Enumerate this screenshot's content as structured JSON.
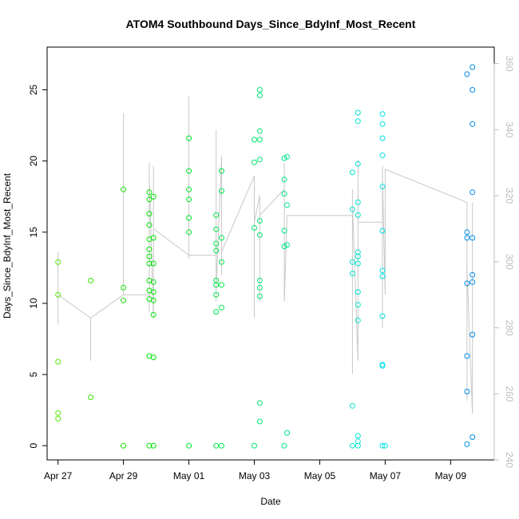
{
  "chart_data": {
    "type": "scatter",
    "title": "ATOM4 Southbound Days_Since_BdyInf_Most_Recent",
    "xlabel": "Date",
    "ylabel": "Days_Since_BdyInf_Most_Recent",
    "x_tick_labels": [
      "Apr 27",
      "Apr 29",
      "May 01",
      "May 03",
      "May 05",
      "May 07",
      "May 09"
    ],
    "x_tick_dates": [
      "2000-04-27",
      "2000-04-29",
      "2000-05-01",
      "2000-05-03",
      "2000-05-05",
      "2000-05-07",
      "2000-05-09"
    ],
    "xlim": [
      "2000-04-26T16:00",
      "2000-05-10T08:00"
    ],
    "ylim": [
      -1,
      28
    ],
    "y_ticks": [
      0,
      5,
      10,
      15,
      20,
      25
    ],
    "y2_ticks": [
      240,
      260,
      280,
      300,
      320,
      340,
      360
    ],
    "y2lim": [
      240,
      365
    ],
    "grid": false,
    "points": [
      [
        "2000-04-27T00:00",
        12.9
      ],
      [
        "2000-04-27T00:00",
        10.6
      ],
      [
        "2000-04-27T00:00",
        5.9
      ],
      [
        "2000-04-27T00:00",
        2.3
      ],
      [
        "2000-04-27T00:00",
        1.9
      ],
      [
        "2000-04-28T00:00",
        11.6
      ],
      [
        "2000-04-28T00:00",
        3.4
      ],
      [
        "2000-04-29T00:00",
        18.0
      ],
      [
        "2000-04-29T00:00",
        11.1
      ],
      [
        "2000-04-29T00:00",
        10.2
      ],
      [
        "2000-04-29T00:00",
        0.0
      ],
      [
        "2000-04-29T19:00",
        17.8
      ],
      [
        "2000-04-29T19:00",
        17.3
      ],
      [
        "2000-04-29T19:00",
        16.3
      ],
      [
        "2000-04-29T19:00",
        15.5
      ],
      [
        "2000-04-29T19:00",
        14.5
      ],
      [
        "2000-04-29T19:00",
        13.8
      ],
      [
        "2000-04-29T19:00",
        13.3
      ],
      [
        "2000-04-29T19:00",
        12.8
      ],
      [
        "2000-04-29T19:00",
        11.6
      ],
      [
        "2000-04-29T19:00",
        10.9
      ],
      [
        "2000-04-29T19:00",
        10.3
      ],
      [
        "2000-04-29T19:00",
        6.3
      ],
      [
        "2000-04-29T19:00",
        0.0
      ],
      [
        "2000-04-29T22:00",
        17.5
      ],
      [
        "2000-04-29T22:00",
        14.6
      ],
      [
        "2000-04-29T22:00",
        12.8
      ],
      [
        "2000-04-29T22:00",
        11.5
      ],
      [
        "2000-04-29T22:00",
        10.8
      ],
      [
        "2000-04-29T22:00",
        10.2
      ],
      [
        "2000-04-29T22:00",
        9.2
      ],
      [
        "2000-04-29T22:00",
        6.2
      ],
      [
        "2000-04-29T22:00",
        0.0
      ],
      [
        "2000-05-01T00:00",
        21.6
      ],
      [
        "2000-05-01T00:00",
        19.3
      ],
      [
        "2000-05-01T00:00",
        18.0
      ],
      [
        "2000-05-01T00:00",
        17.3
      ],
      [
        "2000-05-01T00:00",
        16.0
      ],
      [
        "2000-05-01T00:00",
        15.0
      ],
      [
        "2000-05-01T00:00",
        0.0
      ],
      [
        "2000-05-01T20:00",
        16.2
      ],
      [
        "2000-05-01T20:00",
        15.2
      ],
      [
        "2000-05-01T20:00",
        14.2
      ],
      [
        "2000-05-01T20:00",
        13.7
      ],
      [
        "2000-05-01T20:00",
        11.6
      ],
      [
        "2000-05-01T20:00",
        11.3
      ],
      [
        "2000-05-01T20:00",
        10.6
      ],
      [
        "2000-05-01T20:00",
        9.4
      ],
      [
        "2000-05-01T20:00",
        0.0
      ],
      [
        "2000-05-02T00:00",
        19.3
      ],
      [
        "2000-05-02T00:00",
        17.9
      ],
      [
        "2000-05-02T00:00",
        14.6
      ],
      [
        "2000-05-02T00:00",
        12.9
      ],
      [
        "2000-05-02T00:00",
        11.3
      ],
      [
        "2000-05-02T00:00",
        9.7
      ],
      [
        "2000-05-02T00:00",
        0.0
      ],
      [
        "2000-05-03T00:00",
        21.5
      ],
      [
        "2000-05-03T00:00",
        19.9
      ],
      [
        "2000-05-03T00:00",
        15.3
      ],
      [
        "2000-05-03T00:00",
        0.0
      ],
      [
        "2000-05-03T04:00",
        25.0
      ],
      [
        "2000-05-03T04:00",
        24.6
      ],
      [
        "2000-05-03T04:00",
        22.1
      ],
      [
        "2000-05-03T04:00",
        21.5
      ],
      [
        "2000-05-03T04:00",
        20.1
      ],
      [
        "2000-05-03T04:00",
        15.8
      ],
      [
        "2000-05-03T04:00",
        14.8
      ],
      [
        "2000-05-03T04:00",
        11.6
      ],
      [
        "2000-05-03T04:00",
        11.1
      ],
      [
        "2000-05-03T04:00",
        10.5
      ],
      [
        "2000-05-03T04:00",
        3.0
      ],
      [
        "2000-05-03T04:00",
        1.7
      ],
      [
        "2000-05-03T22:00",
        20.2
      ],
      [
        "2000-05-03T22:00",
        18.7
      ],
      [
        "2000-05-03T22:00",
        17.7
      ],
      [
        "2000-05-03T22:00",
        15.1
      ],
      [
        "2000-05-03T22:00",
        14.0
      ],
      [
        "2000-05-03T22:00",
        0.0
      ],
      [
        "2000-05-04T00:00",
        20.3
      ],
      [
        "2000-05-04T00:00",
        16.9
      ],
      [
        "2000-05-04T00:00",
        14.1
      ],
      [
        "2000-05-04T00:00",
        0.9
      ],
      [
        "2000-05-06T00:00",
        19.2
      ],
      [
        "2000-05-06T00:00",
        16.6
      ],
      [
        "2000-05-06T00:00",
        12.9
      ],
      [
        "2000-05-06T00:00",
        12.1
      ],
      [
        "2000-05-06T00:00",
        2.8
      ],
      [
        "2000-05-06T00:00",
        0.0
      ],
      [
        "2000-05-06T04:00",
        23.4
      ],
      [
        "2000-05-06T04:00",
        22.8
      ],
      [
        "2000-05-06T04:00",
        19.8
      ],
      [
        "2000-05-06T04:00",
        17.1
      ],
      [
        "2000-05-06T04:00",
        16.2
      ],
      [
        "2000-05-06T04:00",
        13.6
      ],
      [
        "2000-05-06T04:00",
        13.3
      ],
      [
        "2000-05-06T04:00",
        12.8
      ],
      [
        "2000-05-06T04:00",
        10.8
      ],
      [
        "2000-05-06T04:00",
        9.9
      ],
      [
        "2000-05-06T04:00",
        8.8
      ],
      [
        "2000-05-06T04:00",
        0.7
      ],
      [
        "2000-05-06T04:00",
        0.3
      ],
      [
        "2000-05-06T04:00",
        0.0
      ],
      [
        "2000-05-06T22:00",
        23.3
      ],
      [
        "2000-05-06T22:00",
        22.6
      ],
      [
        "2000-05-06T22:00",
        21.6
      ],
      [
        "2000-05-06T22:00",
        20.4
      ],
      [
        "2000-05-06T22:00",
        18.2
      ],
      [
        "2000-05-06T22:00",
        15.1
      ],
      [
        "2000-05-06T22:00",
        12.3
      ],
      [
        "2000-05-06T22:00",
        11.9
      ],
      [
        "2000-05-06T22:00",
        9.1
      ],
      [
        "2000-05-06T22:00",
        5.7
      ],
      [
        "2000-05-06T22:00",
        5.6
      ],
      [
        "2000-05-06T22:00",
        0.0
      ],
      [
        "2000-05-07T00:00",
        0.0
      ],
      [
        "2000-05-09T12:00",
        26.1
      ],
      [
        "2000-05-09T12:00",
        15.0
      ],
      [
        "2000-05-09T12:00",
        14.6
      ],
      [
        "2000-05-09T12:00",
        11.4
      ],
      [
        "2000-05-09T12:00",
        6.3
      ],
      [
        "2000-05-09T12:00",
        3.8
      ],
      [
        "2000-05-09T12:00",
        0.1
      ],
      [
        "2000-05-09T16:00",
        26.6
      ],
      [
        "2000-05-09T16:00",
        25.0
      ],
      [
        "2000-05-09T16:00",
        22.6
      ],
      [
        "2000-05-09T16:00",
        17.8
      ],
      [
        "2000-05-09T16:00",
        14.6
      ],
      [
        "2000-05-09T16:00",
        12.0
      ],
      [
        "2000-05-09T16:00",
        11.5
      ],
      [
        "2000-05-09T16:00",
        7.8
      ],
      [
        "2000-05-09T16:00",
        0.6
      ]
    ],
    "line_y2": [
      [
        "2000-04-27T00:00",
        300
      ],
      [
        "2000-04-27T00:00",
        294
      ],
      [
        "2000-04-27T00:00",
        303
      ],
      [
        "2000-04-27T00:00",
        281
      ],
      [
        "2000-04-27T00:00",
        290
      ],
      [
        "2000-04-28T00:00",
        283
      ],
      [
        "2000-04-28T00:00",
        270
      ],
      [
        "2000-04-28T00:00",
        283
      ],
      [
        "2000-04-29T00:00",
        290
      ],
      [
        "2000-04-29T00:00",
        345
      ],
      [
        "2000-04-29T00:00",
        290
      ],
      [
        "2000-04-29T19:00",
        290
      ],
      [
        "2000-04-29T19:00",
        328
      ],
      [
        "2000-04-29T19:00",
        285
      ],
      [
        "2000-04-29T19:00",
        330
      ],
      [
        "2000-04-29T19:00",
        288
      ],
      [
        "2000-04-29T19:00",
        325
      ],
      [
        "2000-04-29T22:00",
        283
      ],
      [
        "2000-04-29T22:00",
        329
      ],
      [
        "2000-04-29T22:00",
        292
      ],
      [
        "2000-04-29T22:00",
        310
      ],
      [
        "2000-05-01T00:00",
        302
      ],
      [
        "2000-05-01T00:00",
        335
      ],
      [
        "2000-05-01T00:00",
        301
      ],
      [
        "2000-05-01T00:00",
        350
      ],
      [
        "2000-05-01T00:00",
        302
      ],
      [
        "2000-05-01T20:00",
        302
      ],
      [
        "2000-05-01T20:00",
        340
      ],
      [
        "2000-05-01T20:00",
        288
      ],
      [
        "2000-05-01T20:00",
        338
      ],
      [
        "2000-05-01T20:00",
        292
      ],
      [
        "2000-05-02T00:00",
        332
      ],
      [
        "2000-05-02T00:00",
        296
      ],
      [
        "2000-05-02T00:00",
        330
      ],
      [
        "2000-05-02T00:00",
        303
      ],
      [
        "2000-05-03T00:00",
        326
      ],
      [
        "2000-05-03T00:00",
        283
      ],
      [
        "2000-05-03T00:00",
        322
      ],
      [
        "2000-05-03T00:00",
        285
      ],
      [
        "2000-05-03T00:00",
        312
      ],
      [
        "2000-05-03T04:00",
        320
      ],
      [
        "2000-05-03T04:00",
        288
      ],
      [
        "2000-05-03T04:00",
        314
      ],
      [
        "2000-05-03T22:00",
        322
      ],
      [
        "2000-05-03T22:00",
        305
      ],
      [
        "2000-05-03T22:00",
        330
      ],
      [
        "2000-05-03T22:00",
        288
      ],
      [
        "2000-05-04T00:00",
        314
      ],
      [
        "2000-05-06T00:00",
        314
      ],
      [
        "2000-05-06T00:00",
        322
      ],
      [
        "2000-05-06T00:00",
        266
      ],
      [
        "2000-05-06T00:00",
        318
      ],
      [
        "2000-05-06T04:00",
        270
      ],
      [
        "2000-05-06T04:00",
        331
      ],
      [
        "2000-05-06T04:00",
        290
      ],
      [
        "2000-05-06T04:00",
        312
      ],
      [
        "2000-05-06T22:00",
        312
      ],
      [
        "2000-05-06T22:00",
        329
      ],
      [
        "2000-05-06T22:00",
        280
      ],
      [
        "2000-05-06T22:00",
        326
      ],
      [
        "2000-05-07T00:00",
        290
      ],
      [
        "2000-05-07T00:00",
        328
      ],
      [
        "2000-05-09T12:00",
        318
      ],
      [
        "2000-05-09T12:00",
        270
      ],
      [
        "2000-05-09T12:00",
        312
      ],
      [
        "2000-05-09T12:00",
        258
      ],
      [
        "2000-05-09T12:00",
        298
      ],
      [
        "2000-05-09T16:00",
        254
      ],
      [
        "2000-05-09T16:00",
        318
      ],
      [
        "2000-05-09T16:00",
        292
      ],
      [
        "2000-05-09T16:00",
        310
      ]
    ]
  }
}
